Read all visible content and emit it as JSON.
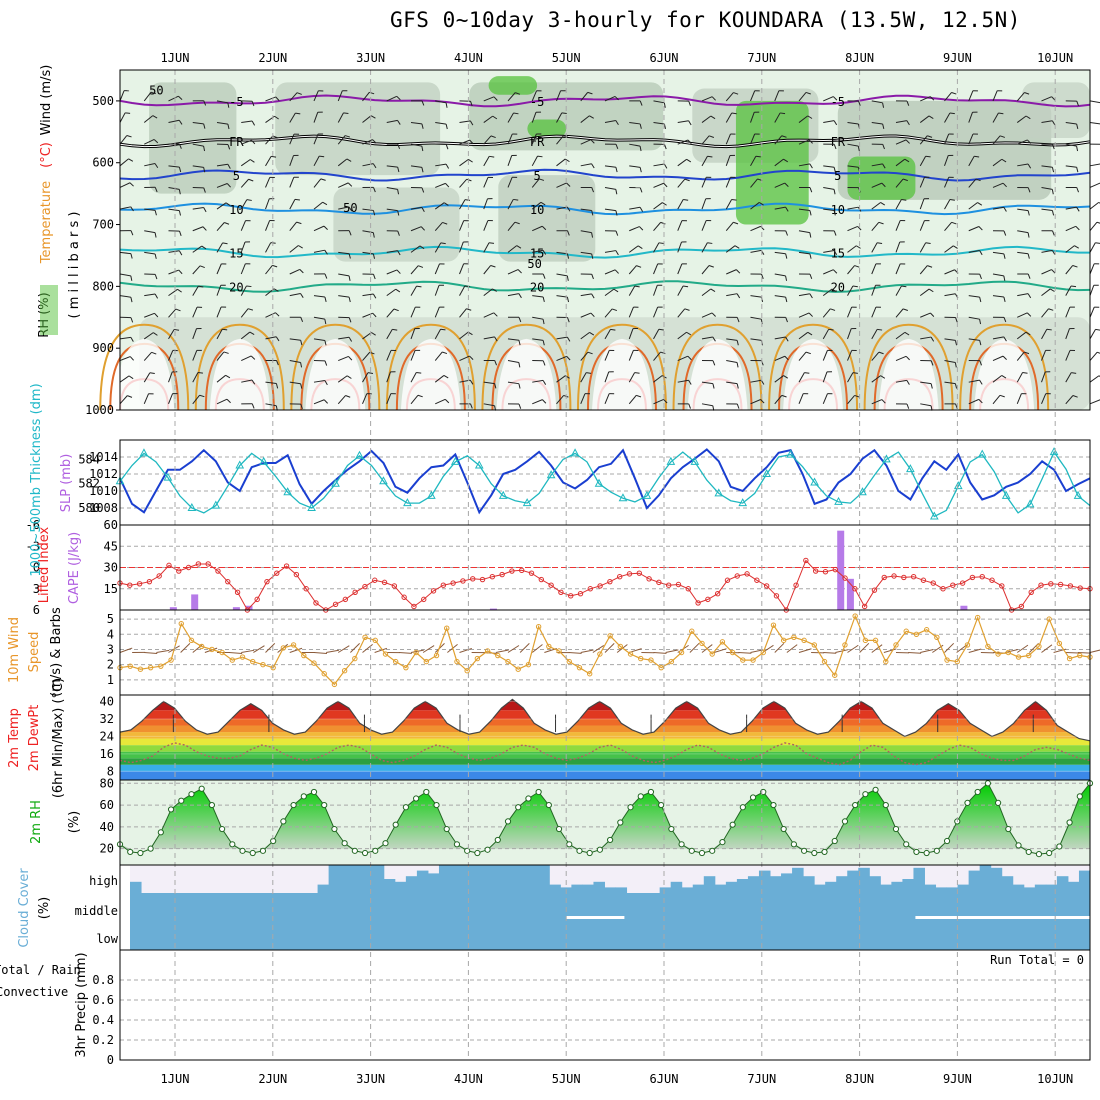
{
  "title": "GFS 0~10day 3-hourly for KOUNDARA (13.5W, 12.5N)",
  "dates": [
    "1JUN",
    "2JUN",
    "3JUN",
    "4JUN",
    "5JUN",
    "6JUN",
    "7JUN",
    "8JUN",
    "9JUN",
    "10JUN"
  ],
  "run_total": "Run Total = 0",
  "chart_data": [
    {
      "type": "heatmap",
      "panel": "upper-air",
      "ylabel_parts": [
        "RH (%)",
        "Temperature (°C)",
        "Wind (m/s)"
      ],
      "ylabel2": "( m i l l i b a r s )",
      "yticks": [
        500,
        600,
        700,
        800,
        900,
        1000
      ],
      "ylim": [
        1000,
        450
      ],
      "isotherm_labels": [
        "-5",
        "FR",
        "5",
        "10",
        "15",
        "20",
        "50"
      ],
      "isotherms": [
        {
          "label": "-5",
          "p": 500,
          "color": "#8a1aa8"
        },
        {
          "label": "FR",
          "p": 565,
          "color": "#000000"
        },
        {
          "label": "5",
          "p": 620,
          "color": "#2244cc"
        },
        {
          "label": "10",
          "p": 675,
          "color": "#1e90e0"
        },
        {
          "label": "15",
          "p": 745,
          "color": "#22b8c8"
        },
        {
          "label": "20",
          "p": 800,
          "color": "#22aa88"
        }
      ]
    },
    {
      "type": "line",
      "panel": "thickness-slp",
      "ylabel_left": "1000~500mb Thickness (dm)",
      "ylabel_right": "SLP (mb)",
      "yticks_left": [
        580,
        582,
        584
      ],
      "yticks_right": [
        1008,
        1010,
        1012,
        1014
      ],
      "ylim_left": [
        578.6,
        585.6
      ],
      "ylim_right": [
        1006,
        1016
      ],
      "series": [
        {
          "name": "SLP (mb)",
          "color": "#1a3fd0",
          "values": [
            1011.5,
            1008.5,
            1007.5,
            1010,
            1012.5,
            1012.5,
            1013.5,
            1014.8,
            1013.5,
            1011,
            1010,
            1012.8,
            1013.3,
            1013.3,
            1014.2,
            1010.8,
            1008.5,
            1010,
            1011.3,
            1012.5,
            1013.5,
            1014.7,
            1013.3,
            1010.5,
            1009.8,
            1011.5,
            1012.8,
            1013,
            1014.3,
            1011,
            1007.5,
            1009.5,
            1012,
            1012.5,
            1013.5,
            1014.6,
            1013,
            1011,
            1010.3,
            1011.3,
            1012.8,
            1013.2,
            1014.8,
            1011.5,
            1008,
            1009.5,
            1011.5,
            1012.8,
            1013.8,
            1014.9,
            1013.5,
            1010.5,
            1010,
            1011.5,
            1012.8,
            1014.5,
            1014.8,
            1012,
            1008.5,
            1009,
            1011,
            1012,
            1013.8,
            1014.8,
            1013,
            1010,
            1009,
            1011.5,
            1013.5,
            1012.5,
            1014.3,
            1011,
            1009,
            1009.5,
            1010.5,
            1011,
            1012,
            1013.5,
            1012.5,
            1010,
            1010.8,
            1011.5
          ]
        },
        {
          "name": "Thickness (dm)",
          "color": "#1fb8c0",
          "values": [
            582.2,
            583.5,
            584.5,
            583.8,
            582.5,
            581,
            580,
            579.6,
            580.2,
            581.8,
            583.5,
            584.5,
            583.8,
            582.6,
            581.3,
            580.4,
            580,
            580.8,
            582,
            583.5,
            584.3,
            583.5,
            582.2,
            581,
            580.4,
            580.4,
            581,
            582.6,
            583.8,
            584.3,
            583.5,
            582,
            581,
            580.6,
            580.4,
            581.2,
            582.7,
            584,
            584.5,
            583.8,
            582,
            581.3,
            580.8,
            580.5,
            581,
            582.5,
            583.8,
            584.6,
            583.8,
            582.3,
            581.2,
            580.6,
            580.4,
            581.2,
            582.8,
            584.2,
            584.4,
            583.4,
            582.1,
            581,
            580.5,
            580.4,
            581.3,
            582.7,
            584,
            584.6,
            583.2,
            581.2,
            579.3,
            579.8,
            581.8,
            583.8,
            584.4,
            583,
            581,
            579.6,
            580.3,
            582.4,
            584.6,
            583.2,
            581,
            580.2
          ]
        }
      ]
    },
    {
      "type": "line",
      "panel": "lifted-index-cape",
      "ylabel_left": "Lifted Index",
      "ylabel_right": "CAPE (J/kg)",
      "yticks_left": [
        -6,
        -3,
        0,
        3,
        6
      ],
      "yticks_right": [
        15,
        30,
        45,
        60
      ],
      "ylim_left": [
        6,
        -6
      ],
      "ylim_right": [
        0,
        60
      ],
      "series": [
        {
          "name": "Lifted Index",
          "color": "#dd3030",
          "values": [
            2.2,
            2.5,
            2.3,
            2,
            1.2,
            -0.3,
            0.5,
            0,
            -0.5,
            -0.5,
            0.5,
            2,
            3.5,
            6,
            4.5,
            2,
            0.8,
            -0.2,
            1,
            3,
            5,
            6,
            5.2,
            4.5,
            3.5,
            2.7,
            1.8,
            2.1,
            2.6,
            4.2,
            5.5,
            4.5,
            3.3,
            2.5,
            2.2,
            1.9,
            1.6,
            1.7,
            1.3,
            1,
            0.5,
            0.4,
            0.8,
            1.7,
            2.5,
            3.5,
            4,
            3.7,
            3,
            2.6,
            2,
            1.3,
            0.9,
            0.8,
            1.6,
            2.1,
            2.5,
            2.4,
            3,
            5,
            4.5,
            3.7,
            1.8,
            1.2,
            0.9,
            1.8,
            2.6,
            4,
            6,
            2.5,
            -1,
            0.5,
            0.6,
            0.3,
            1.5,
            3,
            5.5,
            3.2,
            1.4,
            1.2,
            1.4,
            1.3,
            1.8,
            2.2,
            3,
            2.5,
            2.2,
            1.4,
            1.3,
            1.8,
            2.6,
            6,
            5.5,
            3.5,
            2.5,
            2.3,
            2.4,
            2.6,
            2.9,
            3
          ]
        },
        {
          "name": "CAPE (J/kg)",
          "color": "#b67be8",
          "type": "bar",
          "bars": [
            {
              "x": 0.55,
              "v": 2
            },
            {
              "x": 0.77,
              "v": 11
            },
            {
              "x": 1.2,
              "v": 2
            },
            {
              "x": 1.33,
              "v": 3
            },
            {
              "x": 3.85,
              "v": 1
            },
            {
              "x": 7.43,
              "v": 56
            },
            {
              "x": 7.53,
              "v": 22
            },
            {
              "x": 8.7,
              "v": 3
            }
          ]
        }
      ]
    },
    {
      "type": "line",
      "panel": "10m-wind",
      "ylabel": [
        "10m Wind",
        "Speed",
        "(m/s) & Barbs"
      ],
      "yticks": [
        1,
        2,
        3,
        4,
        5
      ],
      "ylim": [
        0,
        5.6
      ],
      "series": [
        {
          "name": "10m Wind Speed",
          "color": "#e0a030",
          "values": [
            1.8,
            1.9,
            1.7,
            1.8,
            1.9,
            2.3,
            4.7,
            3.6,
            3.2,
            3,
            2.8,
            2.3,
            2.5,
            2.2,
            2,
            1.8,
            3.1,
            3.3,
            2.6,
            2.1,
            1.4,
            0.7,
            1.6,
            2.4,
            3.8,
            3.6,
            2.7,
            2.2,
            1.8,
            2.8,
            2.2,
            2.6,
            4.4,
            2.2,
            1.6,
            2.4,
            2.9,
            2.6,
            2.2,
            1.7,
            2,
            4.5,
            3.2,
            2.9,
            2.2,
            1.8,
            1.4,
            2.7,
            3.9,
            3.2,
            2.7,
            2.4,
            2.3,
            1.8,
            2.2,
            2.8,
            4.2,
            3.4,
            2.7,
            3.5,
            2.8,
            2.3,
            2.3,
            2.8,
            4.6,
            3.6,
            3.8,
            3.6,
            3.3,
            2.2,
            1.3,
            3.3,
            5.2,
            3.6,
            3.6,
            2.2,
            3.3,
            4.2,
            4,
            4.3,
            3.8,
            2.3,
            2.2,
            3.3,
            5.1,
            3.2,
            2.7,
            2.8,
            2.5,
            2.6,
            3.2,
            5,
            3.4,
            2.4,
            2.6,
            2.5
          ]
        }
      ]
    },
    {
      "type": "area",
      "panel": "2m-temp",
      "ylabel": [
        "2m Temp",
        "2m DewPt",
        "(6hr Min/Max) (°C)"
      ],
      "yticks": [
        8,
        16,
        24,
        32,
        40
      ],
      "ylim": [
        4,
        43
      ],
      "series": [
        {
          "name": "2m Temp",
          "values": [
            26,
            27,
            31,
            36,
            40,
            37,
            31,
            27,
            25,
            26,
            31,
            36,
            39,
            36,
            30,
            27,
            25,
            26,
            31,
            37,
            40,
            37,
            30,
            27,
            25,
            26,
            31,
            37,
            40,
            37,
            30,
            27,
            25,
            26,
            31,
            37,
            41,
            37,
            30,
            27,
            25,
            26,
            31,
            37,
            40,
            37,
            30,
            27,
            25,
            26,
            31,
            37,
            40,
            37,
            30,
            27,
            25,
            26,
            31,
            37,
            40,
            37,
            30,
            27,
            25,
            26,
            31,
            37,
            40,
            37,
            30,
            27,
            24,
            26,
            30,
            36,
            39,
            36,
            30,
            27,
            24,
            26,
            30,
            36,
            40,
            36,
            29,
            26,
            23,
            22
          ]
        },
        {
          "name": "2m DewPt",
          "values": [
            13,
            12,
            13,
            15,
            19,
            21,
            20,
            17,
            15,
            14,
            14,
            15,
            18,
            20,
            19,
            16,
            14,
            13,
            14,
            16,
            19,
            20,
            19,
            16,
            13,
            12,
            13,
            15,
            18,
            20,
            19,
            16,
            14,
            13,
            14,
            16,
            19,
            20,
            19,
            16,
            14,
            13,
            14,
            16,
            19,
            20,
            18,
            15,
            13,
            12,
            13,
            15,
            18,
            20,
            19,
            16,
            14,
            13,
            14,
            16,
            19,
            21,
            20,
            16,
            14,
            12,
            11,
            13,
            17,
            20,
            19,
            15,
            12,
            11,
            12,
            15,
            18,
            20,
            19,
            16,
            14,
            13,
            13,
            15,
            18,
            19,
            18,
            16,
            14,
            13
          ]
        }
      ]
    },
    {
      "type": "area",
      "panel": "2m-rh",
      "ylabel": [
        "2m RH",
        "(%)"
      ],
      "yticks": [
        20,
        40,
        60,
        80
      ],
      "ylim": [
        5,
        83
      ],
      "series": [
        {
          "name": "2m RH",
          "values": [
            24,
            17,
            16,
            20,
            35,
            56,
            64,
            70,
            75,
            60,
            38,
            24,
            18,
            16,
            18,
            27,
            45,
            60,
            68,
            72,
            60,
            38,
            25,
            18,
            16,
            18,
            25,
            42,
            58,
            66,
            72,
            60,
            38,
            24,
            18,
            16,
            19,
            28,
            45,
            58,
            66,
            72,
            60,
            38,
            24,
            18,
            16,
            19,
            28,
            44,
            58,
            68,
            72,
            60,
            38,
            24,
            18,
            16,
            18,
            26,
            42,
            58,
            67,
            72,
            60,
            38,
            24,
            18,
            16,
            17,
            27,
            45,
            60,
            70,
            74,
            60,
            38,
            24,
            17,
            16,
            18,
            27,
            45,
            62,
            72,
            80,
            62,
            38,
            23,
            17,
            15,
            16,
            22,
            44,
            68,
            80
          ]
        }
      ]
    },
    {
      "type": "bar",
      "panel": "cloud-cover",
      "ylabel": [
        "Cloud Cover",
        "(%)"
      ],
      "levels": [
        "high",
        "middle",
        "low"
      ]
    },
    {
      "type": "bar",
      "panel": "precip",
      "ylabel": [
        "3hr Precip (mm)"
      ],
      "legend": [
        "Total / Rain",
        "Convective"
      ],
      "yticks": [
        0,
        0.2,
        0.4,
        0.6,
        0.8
      ],
      "ylim": [
        0,
        1
      ],
      "values": [
        0
      ]
    }
  ],
  "colors": {
    "panel_bg": "#e6f3e6",
    "grid": "#a8a8a8",
    "lifted_zero": "#ee3333",
    "cloud": "#6aaed6",
    "cloud_empty": "#f3eff8",
    "rh_green": "#55c23c",
    "green_label": "#11aa11",
    "red_label": "#ee2222",
    "orange_label": "#e8962a",
    "purple_label": "#b060e0",
    "teal_label": "#20b8c8",
    "cloud_label": "#6aaed6"
  },
  "side_labels": {
    "upper_rh": "RH (%)",
    "upper_temp": "Temperature",
    "upper_temp_unit": "(°C)",
    "upper_wind": "Wind (m/s)",
    "thick": "1000~500mb Thickness (dm)",
    "slp": "SLP (mb)",
    "lifted": "Lifted Index",
    "cape": "CAPE (J/kg)",
    "wind10a": "10m Wind",
    "wind10b": "Speed",
    "wind10c": "(m/s) & Barbs",
    "t2a": "2m Temp",
    "t2b": "2m DewPt",
    "t2c": "(6hr Min/Max) (°C)",
    "rh2a": "2m RH",
    "rh2b": "(%)",
    "cloud_a": "Cloud Cover",
    "cloud_b": "(%)",
    "precip_a": "Total / Rain",
    "precip_b": "Convective",
    "precip_c": "3hr Precip (mm)"
  }
}
